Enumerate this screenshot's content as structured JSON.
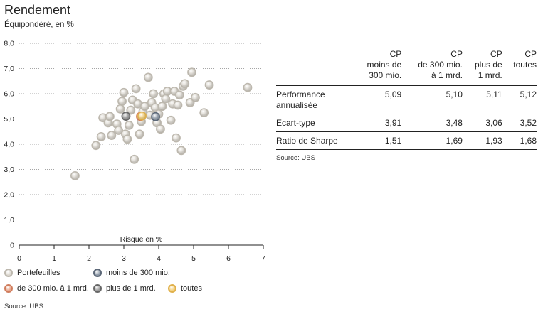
{
  "title": "Rendement",
  "subtitle": "Équipondéré, en %",
  "chart_data": {
    "type": "scatter",
    "xlabel": "Risque en %",
    "ylabel": "",
    "xlim": [
      0,
      7
    ],
    "ylim": [
      0,
      8
    ],
    "x_ticks": [
      "0",
      "1",
      "2",
      "3",
      "4",
      "5",
      "6",
      "7"
    ],
    "y_ticks": [
      "0",
      "1,0",
      "2,0",
      "3,0",
      "4,0",
      "5,0",
      "6,0",
      "7,0",
      "8,0"
    ],
    "grid": "horizontal dotted",
    "series": [
      {
        "name": "Portefeuilles",
        "color": "#dcd8d0",
        "points": [
          [
            1.6,
            2.75
          ],
          [
            2.2,
            3.95
          ],
          [
            2.35,
            4.3
          ],
          [
            2.4,
            5.05
          ],
          [
            2.55,
            4.85
          ],
          [
            2.6,
            5.1
          ],
          [
            2.65,
            4.35
          ],
          [
            2.8,
            4.8
          ],
          [
            2.85,
            4.55
          ],
          [
            2.9,
            5.4
          ],
          [
            2.95,
            5.7
          ],
          [
            3.0,
            6.05
          ],
          [
            3.05,
            4.4
          ],
          [
            3.1,
            4.2
          ],
          [
            3.15,
            4.75
          ],
          [
            3.2,
            5.35
          ],
          [
            3.25,
            5.75
          ],
          [
            3.3,
            3.4
          ],
          [
            3.35,
            6.2
          ],
          [
            3.4,
            5.6
          ],
          [
            3.45,
            4.4
          ],
          [
            3.5,
            4.9
          ],
          [
            3.55,
            5.3
          ],
          [
            3.6,
            5.5
          ],
          [
            3.7,
            6.65
          ],
          [
            3.75,
            5.15
          ],
          [
            3.8,
            5.65
          ],
          [
            3.85,
            6.0
          ],
          [
            3.9,
            5.45
          ],
          [
            3.95,
            4.85
          ],
          [
            4.0,
            5.2
          ],
          [
            4.05,
            4.6
          ],
          [
            4.1,
            5.5
          ],
          [
            4.15,
            6.0
          ],
          [
            4.2,
            5.8
          ],
          [
            4.25,
            6.1
          ],
          [
            4.35,
            4.95
          ],
          [
            4.4,
            5.6
          ],
          [
            4.45,
            6.1
          ],
          [
            4.5,
            4.25
          ],
          [
            4.55,
            5.55
          ],
          [
            4.6,
            5.95
          ],
          [
            4.65,
            3.75
          ],
          [
            4.7,
            6.3
          ],
          [
            4.75,
            6.4
          ],
          [
            4.9,
            5.65
          ],
          [
            4.95,
            6.85
          ],
          [
            5.05,
            5.85
          ],
          [
            5.3,
            5.25
          ],
          [
            5.45,
            6.35
          ],
          [
            6.55,
            6.25
          ]
        ]
      },
      {
        "name": "moins de 300 mio.",
        "color": "#8e9aa8",
        "points": [
          [
            3.91,
            5.09
          ]
        ]
      },
      {
        "name": "de 300 mio. à 1 mrd.",
        "color": "#e8a489",
        "points": [
          [
            3.48,
            5.1
          ]
        ]
      },
      {
        "name": "plus de 1 mrd.",
        "color": "#9a9a9a",
        "points": [
          [
            3.06,
            5.11
          ]
        ]
      },
      {
        "name": "toutes",
        "color": "#f3cf7a",
        "points": [
          [
            3.52,
            5.12
          ]
        ]
      }
    ]
  },
  "legend": [
    {
      "label": "Portefeuilles",
      "fill": "#dcd8d0",
      "ring": "#bdb8ae"
    },
    {
      "label": "moins de 300 mio.",
      "fill": "#8e9aa8",
      "ring": "#5c6878"
    },
    {
      "label": "de 300 mio. à 1 mrd.",
      "fill": "#e8a489",
      "ring": "#cf7c5c"
    },
    {
      "label": "plus de 1 mrd.",
      "fill": "#9a9a9a",
      "ring": "#666666"
    },
    {
      "label": "toutes",
      "fill": "#f3cf7a",
      "ring": "#e0b04a"
    }
  ],
  "source_left": "Source: UBS",
  "table": {
    "headers": [
      "",
      "CP moins de 300 mio.",
      "CP de 300 mio. à 1 mrd.",
      "CP plus de 1 mrd.",
      "CP toutes"
    ],
    "header_lines": [
      [],
      [
        "CP",
        "moins de",
        "300 mio."
      ],
      [
        "CP",
        "de 300 mio.",
        "à 1 mrd."
      ],
      [
        "CP",
        "plus de",
        "1 mrd."
      ],
      [
        "CP",
        "toutes"
      ]
    ],
    "rows": [
      {
        "label": "Performance annualisée",
        "label_lines": [
          "Performance",
          "annualisée"
        ],
        "values": [
          "5,09",
          "5,10",
          "5,11",
          "5,12"
        ]
      },
      {
        "label": "Ecart-type",
        "label_lines": [
          "Ecart-type"
        ],
        "values": [
          "3,91",
          "3,48",
          "3,06",
          "3,52"
        ]
      },
      {
        "label": "Ratio de Sharpe",
        "label_lines": [
          "Ratio de Sharpe"
        ],
        "values": [
          "1,51",
          "1,69",
          "1,93",
          "1,68"
        ]
      }
    ]
  },
  "source_right": "Source: UBS"
}
